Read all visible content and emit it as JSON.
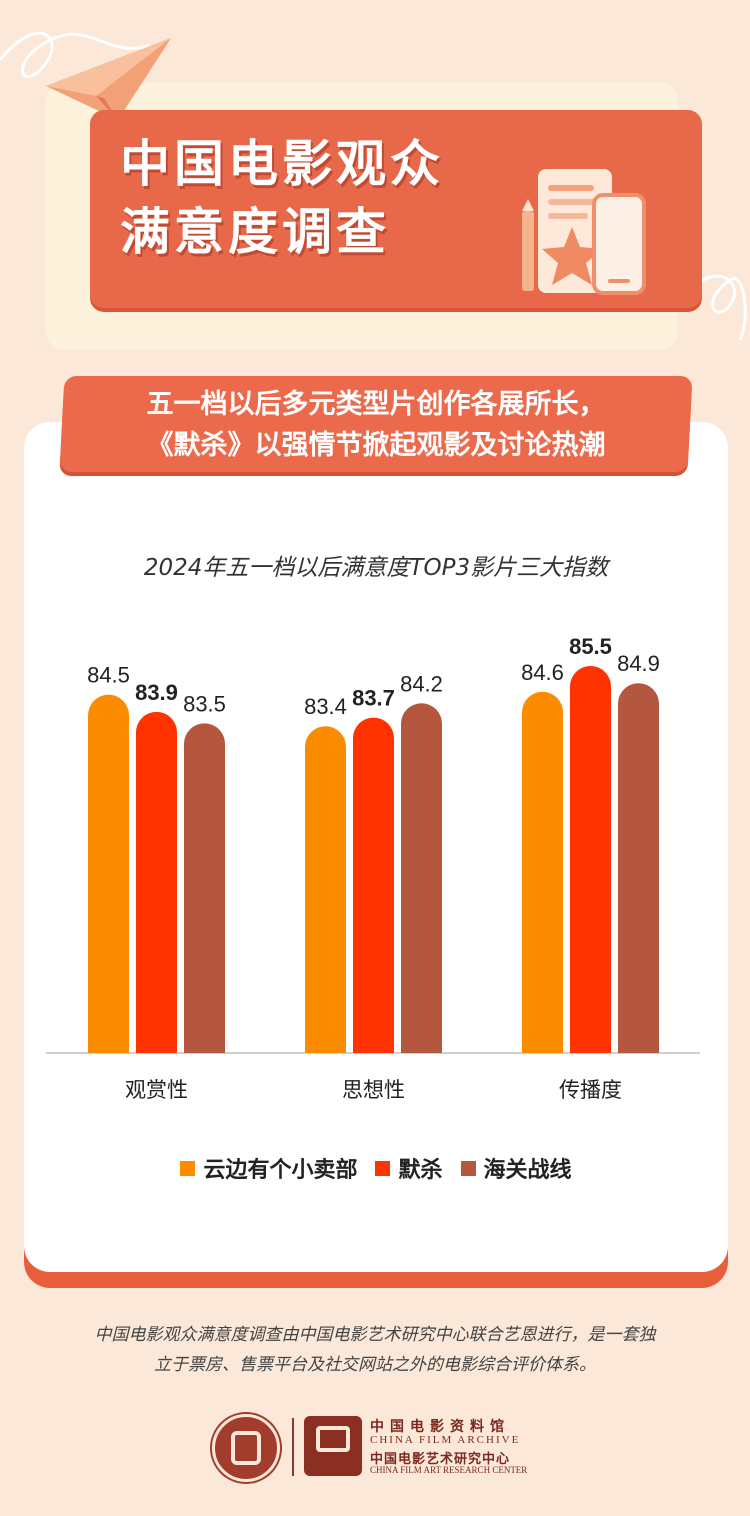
{
  "header": {
    "title": "中国电影观众\n满意度调查",
    "banner": "五一档以后多元类型片创作各展所长，\n《默杀》以强情节掀起观影及讨论热潮"
  },
  "colors": {
    "series": [
      "#fb8c00",
      "#ff3300",
      "#b5563e"
    ]
  },
  "chart_data": {
    "type": "bar",
    "title": "2024年五一档以后满意度TOP3影片三大指数",
    "categories": [
      "观赏性",
      "思想性",
      "传播度"
    ],
    "series": [
      {
        "name": "云边有个小卖部",
        "values": [
          84.5,
          83.4,
          84.6
        ]
      },
      {
        "name": "默杀",
        "values": [
          83.9,
          83.7,
          85.5
        ]
      },
      {
        "name": "海关战线",
        "values": [
          83.5,
          84.2,
          84.9
        ]
      }
    ],
    "value_labels": [
      [
        "84.5",
        "83.4",
        "84.6"
      ],
      [
        "83.9",
        "83.7",
        "85.5"
      ],
      [
        "83.5",
        "84.2",
        "84.9"
      ]
    ],
    "highlight_series": "默杀",
    "legend_position": "bottom",
    "grid": false
  },
  "footer": {
    "note": "中国电影观众满意度调查由中国电影艺术研究中心联合艺恩进行，是一套独\n立于票房、售票平台及社交网站之外的电影综合评价体系。",
    "org_cn_1": "中国电影资料馆",
    "org_en_1": "CHINA FILM ARCHIVE",
    "org_cn_2": "中国电影艺术研究中心",
    "org_en_2": "CHINA FILM ART RESEARCH CENTER"
  }
}
